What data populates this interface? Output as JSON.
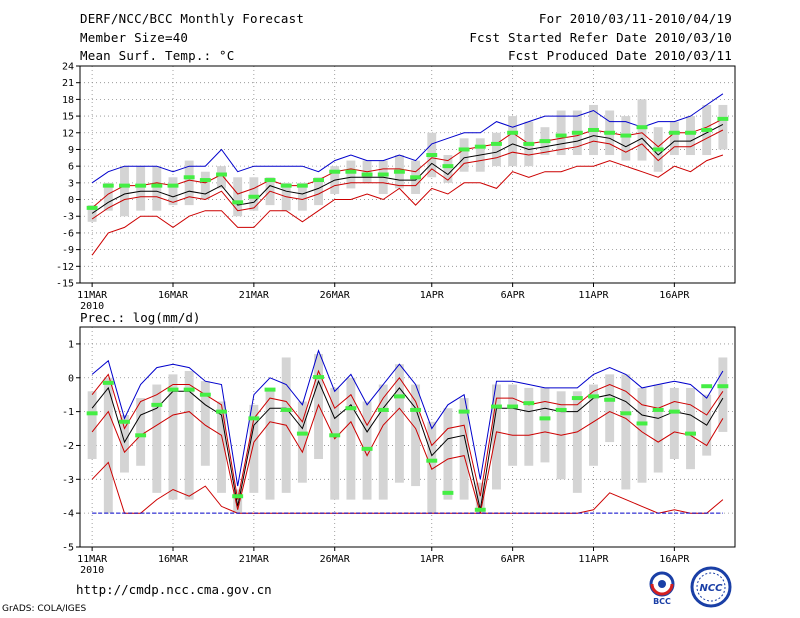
{
  "header": {
    "title": "DERF/NCC/BCC Monthly Forecast",
    "member_size": "Member Size=40",
    "variable": "Mean Surf. Temp.: °C",
    "period": "For 2010/03/11-2010/04/19",
    "started": "Fcst Started Refer Date 2010/03/10",
    "produced": "Fcst Produced Date 2010/03/11"
  },
  "footer": {
    "url": "http://cmdp.ncc.cma.gov.cn",
    "grads": "GrADS: COLA/IGES",
    "logo_left_text": "BCC",
    "logo_right_text": "NCC"
  },
  "colors": {
    "box": "#d4d4d4",
    "median": "#44ee44",
    "max_line": "#0000cc",
    "mean_line": "#000000",
    "min_line": "#cc0000",
    "grid": "#8c8c8c"
  },
  "chart_data": [
    {
      "type": "box",
      "title": "Mean Surf. Temp.: °C",
      "xlabel": "",
      "ylabel": "°C",
      "ylim": [
        -15,
        24
      ],
      "yticks": [
        -15,
        -12,
        -9,
        -6,
        -3,
        0,
        3,
        6,
        9,
        12,
        15,
        18,
        21,
        24
      ],
      "xtick_labels": [
        "11MAR",
        "16MAR",
        "21MAR",
        "26MAR",
        "1APR",
        "6APR",
        "11APR",
        "16APR"
      ],
      "xtick_days": [
        1,
        6,
        11,
        16,
        22,
        27,
        32,
        37
      ],
      "year_label": "2010",
      "grid": true,
      "days": [
        1,
        2,
        3,
        4,
        5,
        6,
        7,
        8,
        9,
        10,
        11,
        12,
        13,
        14,
        15,
        16,
        17,
        18,
        19,
        20,
        21,
        22,
        23,
        24,
        25,
        26,
        27,
        28,
        29,
        30,
        31,
        32,
        33,
        34,
        35,
        36,
        37,
        38,
        39,
        40
      ],
      "series": [
        {
          "name": "maximum",
          "values": [
            3,
            5,
            6,
            6,
            6,
            5,
            6,
            6,
            9,
            5,
            6,
            6,
            6,
            6,
            5,
            7,
            8,
            7,
            7,
            8,
            7,
            10,
            11,
            12,
            12,
            14,
            13,
            14,
            15,
            15,
            15,
            16,
            14,
            14,
            13,
            14,
            14,
            15,
            17,
            19
          ]
        },
        {
          "name": "upper",
          "values": [
            -1.5,
            1,
            2.5,
            2.5,
            3,
            2.5,
            3.5,
            3,
            4.5,
            1,
            2,
            3.5,
            2.5,
            2.5,
            3.5,
            5,
            5.5,
            5,
            5.5,
            5.5,
            5,
            7.5,
            7,
            9,
            9.5,
            10,
            12,
            10,
            10.5,
            11,
            11.5,
            12.5,
            12,
            11.5,
            12,
            9.5,
            12,
            12,
            13,
            14.5
          ]
        },
        {
          "name": "mean",
          "values": [
            -2.5,
            -0.5,
            1,
            1.5,
            1.5,
            0.5,
            1.5,
            1,
            2.5,
            -1,
            -0.5,
            2.5,
            1.5,
            1,
            2,
            3.5,
            4,
            4,
            4,
            3.5,
            3.5,
            6.5,
            4.5,
            7.5,
            8,
            8.5,
            10,
            9,
            9.5,
            10,
            10.5,
            11.5,
            11,
            9.5,
            11,
            8,
            10.5,
            10.5,
            12,
            13.5
          ]
        },
        {
          "name": "lower",
          "values": [
            -3.5,
            -1.5,
            0,
            0.5,
            0.5,
            -0.5,
            0.5,
            0,
            1.5,
            -2,
            -1.5,
            1.5,
            0.5,
            0,
            1,
            2.5,
            3,
            3,
            3,
            2.5,
            2.5,
            5.5,
            3.5,
            6.5,
            7,
            7.5,
            8.5,
            8,
            8.5,
            9,
            9.5,
            10.5,
            10,
            8.5,
            10,
            7,
            9.5,
            9.5,
            11,
            12.5
          ]
        },
        {
          "name": "minimum",
          "values": [
            -10,
            -6,
            -5,
            -3,
            -3,
            -5,
            -3,
            -2,
            -2,
            -5,
            -5,
            -2,
            -2,
            -4,
            -2,
            0,
            0,
            1,
            0,
            2,
            -1,
            2,
            1,
            3,
            3,
            2,
            5,
            4,
            5,
            5,
            6,
            6,
            7,
            6,
            5,
            4,
            6,
            5,
            7,
            8
          ]
        },
        {
          "name": "box_high",
          "values": [
            -1,
            3,
            6,
            6,
            6,
            4,
            7,
            5,
            6,
            4,
            4,
            4,
            3,
            3,
            4,
            6,
            7,
            7,
            7,
            8,
            7,
            12,
            8,
            11,
            11,
            12,
            15,
            14,
            13,
            16,
            16,
            17,
            16,
            15,
            18,
            13,
            14,
            15,
            17,
            17
          ]
        },
        {
          "name": "box_low",
          "values": [
            -4,
            -2,
            -3,
            -2,
            -2,
            -1,
            -1,
            0,
            2,
            -3,
            -2,
            -1,
            -2,
            -2,
            -1,
            1,
            2,
            3,
            1,
            2,
            1,
            4,
            3,
            5,
            5,
            6,
            6,
            6,
            8,
            8,
            8,
            8,
            8,
            7,
            7,
            5,
            8,
            8,
            8,
            9
          ]
        },
        {
          "name": "median",
          "values": [
            -1.5,
            2.5,
            2.5,
            2.5,
            2.5,
            2.5,
            4,
            3.5,
            4.5,
            -0.5,
            0.5,
            3.5,
            2.5,
            2.5,
            3.5,
            5,
            5,
            4.5,
            4.5,
            5,
            4,
            8,
            6,
            9,
            9.5,
            10,
            12,
            10,
            10.5,
            11.5,
            12,
            12.5,
            12,
            11.5,
            13,
            9,
            12,
            12,
            12.5,
            14.5
          ]
        }
      ]
    },
    {
      "type": "box",
      "title": "Prec.: log(mm/d)",
      "xlabel": "",
      "ylabel": "log(mm/d)",
      "ylim": [
        -5,
        1.5
      ],
      "yticks": [
        -5,
        -4,
        -3,
        -2,
        -1,
        0,
        1
      ],
      "xtick_labels": [
        "11MAR",
        "16MAR",
        "21MAR",
        "26MAR",
        "1APR",
        "6APR",
        "11APR",
        "16APR"
      ],
      "xtick_days": [
        1,
        6,
        11,
        16,
        22,
        27,
        32,
        37
      ],
      "year_label": "2010",
      "grid": true,
      "days": [
        1,
        2,
        3,
        4,
        5,
        6,
        7,
        8,
        9,
        10,
        11,
        12,
        13,
        14,
        15,
        16,
        17,
        18,
        19,
        20,
        21,
        22,
        23,
        24,
        25,
        26,
        27,
        28,
        29,
        30,
        31,
        32,
        33,
        34,
        35,
        36,
        37,
        38,
        39,
        40
      ],
      "series": [
        {
          "name": "maximum",
          "values": [
            0.1,
            0.5,
            -1.2,
            -0.2,
            0.3,
            0.4,
            0.3,
            -0.1,
            -0.2,
            -3.2,
            -0.5,
            0,
            -0.2,
            -0.8,
            0.8,
            -0.4,
            0.1,
            -0.8,
            -0.2,
            0.4,
            -0.2,
            -1.5,
            -0.8,
            -0.5,
            -3,
            -0.1,
            -0.1,
            -0.2,
            -0.3,
            -0.3,
            -0.3,
            0.1,
            0.3,
            0.1,
            -0.3,
            -0.2,
            -0.1,
            -0.2,
            -0.6,
            0.2
          ]
        },
        {
          "name": "upper",
          "values": [
            -0.5,
            0.1,
            -1.5,
            -0.7,
            -0.5,
            -0.2,
            -0.2,
            -0.5,
            -0.8,
            -3.6,
            -1.2,
            -0.6,
            -0.7,
            -1.3,
            0.2,
            -0.9,
            -0.5,
            -1.4,
            -0.6,
            0,
            -0.7,
            -2,
            -1.5,
            -1.4,
            -3.5,
            -0.6,
            -0.6,
            -0.8,
            -0.7,
            -0.8,
            -0.8,
            -0.4,
            -0.2,
            -0.4,
            -0.8,
            -0.9,
            -0.7,
            -0.8,
            -1.1,
            -0.4
          ]
        },
        {
          "name": "mean",
          "values": [
            -0.9,
            -0.3,
            -1.9,
            -1.1,
            -0.9,
            -0.4,
            -0.4,
            -0.8,
            -1.1,
            -3.8,
            -1.4,
            -0.9,
            -0.9,
            -1.5,
            -0.1,
            -1.2,
            -0.8,
            -1.6,
            -0.9,
            -0.3,
            -0.9,
            -2.3,
            -1.8,
            -1.7,
            -3.9,
            -0.9,
            -0.9,
            -1.0,
            -0.9,
            -1.0,
            -1.0,
            -0.6,
            -0.5,
            -0.7,
            -1.1,
            -1.2,
            -1.0,
            -1.1,
            -1.4,
            -0.6
          ]
        },
        {
          "name": "lower",
          "values": [
            -1.6,
            -1,
            -2.2,
            -1.7,
            -1.4,
            -1.1,
            -1,
            -1.4,
            -1.7,
            -3.9,
            -1.9,
            -1.3,
            -1.4,
            -2.2,
            -0.8,
            -1.8,
            -1.3,
            -2.3,
            -1.4,
            -0.9,
            -1.5,
            -2.7,
            -2.4,
            -2.3,
            -4,
            -1.6,
            -1.7,
            -1.7,
            -1.6,
            -1.7,
            -1.6,
            -1.3,
            -1,
            -1.2,
            -1.6,
            -1.9,
            -1.6,
            -1.7,
            -2,
            -1.2
          ]
        },
        {
          "name": "minimum",
          "values": [
            -3,
            -2.5,
            -4,
            -4,
            -3.6,
            -3.3,
            -3.5,
            -3.2,
            -3.8,
            -4,
            -4,
            -4,
            -4,
            -4,
            -4,
            -4,
            -4,
            -4,
            -4,
            -4,
            -4,
            -4,
            -4,
            -4,
            -4,
            -4,
            -4,
            -4,
            -4,
            -4,
            -4,
            -3.9,
            -3.4,
            -3.6,
            -3.8,
            -4,
            -3.9,
            -4,
            -4,
            -3.6
          ]
        },
        {
          "name": "box_high",
          "values": [
            -0.4,
            0,
            -1.1,
            -0.6,
            -0.2,
            0.1,
            0.2,
            -0.1,
            -0.7,
            -3.3,
            -0.8,
            -0.3,
            0.6,
            -0.7,
            0.7,
            -0.3,
            0,
            -0.7,
            -0.2,
            0.4,
            -0.2,
            -1.3,
            -0.9,
            -0.6,
            -3.1,
            -0.2,
            -0.2,
            -0.3,
            -0.3,
            -0.4,
            -0.4,
            -0.2,
            0.1,
            0.1,
            -0.3,
            -0.2,
            -0.3,
            -0.3,
            -0.5,
            0.6
          ]
        },
        {
          "name": "box_low",
          "values": [
            -2.4,
            -4,
            -2.8,
            -2.6,
            -3.4,
            -3.6,
            -3.6,
            -2.6,
            -3.4,
            -4,
            -3.4,
            -3.6,
            -3.4,
            -3.1,
            -2.4,
            -3.6,
            -3.6,
            -3.6,
            -3.6,
            -3.1,
            -3.2,
            -4,
            -3.6,
            -3.6,
            -4,
            -3.3,
            -2.6,
            -2.6,
            -2.5,
            -3,
            -3.4,
            -2.6,
            -1.9,
            -3.3,
            -3.1,
            -2.8,
            -2.4,
            -2.7,
            -2.3,
            -1.6
          ]
        },
        {
          "name": "median",
          "values": [
            -1.05,
            -0.15,
            -1.3,
            -1.7,
            -0.8,
            -0.35,
            -0.35,
            -0.5,
            -1.0,
            -3.5,
            -1.2,
            -0.35,
            -0.95,
            -1.65,
            0.02,
            -1.7,
            -0.9,
            -2.1,
            -0.95,
            -0.55,
            -0.95,
            -2.45,
            -3.4,
            -1.0,
            -3.9,
            -0.85,
            -0.85,
            -0.75,
            -1.2,
            -0.95,
            -0.6,
            -0.55,
            -0.65,
            -1.05,
            -1.35,
            -0.95,
            -1.0,
            -1.65,
            -0.25,
            -0.25
          ]
        }
      ]
    }
  ]
}
